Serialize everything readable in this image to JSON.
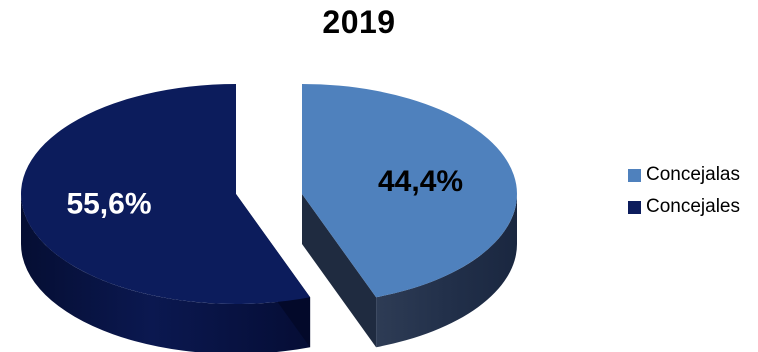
{
  "chart_data": {
    "type": "pie",
    "title": "2019",
    "categories": [
      "Concejalas",
      "Concejales"
    ],
    "values": [
      44.4,
      55.6
    ],
    "labels": [
      "44,4%",
      "55,6%"
    ],
    "colors": [
      "#4f81bd",
      "#0c1c5c"
    ],
    "label_colors": [
      "#000000",
      "#ffffff"
    ],
    "legend_position": "right",
    "style": "3d-exploded"
  }
}
